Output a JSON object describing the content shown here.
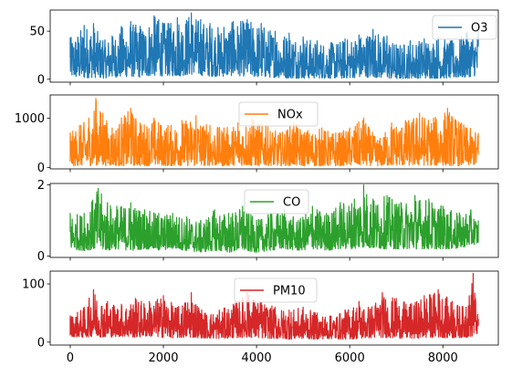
{
  "chart_data": [
    {
      "type": "line",
      "x_range": [
        0,
        8760
      ],
      "ylim": [
        -3,
        72
      ],
      "yticks": [
        0,
        50
      ],
      "legend": "top-right",
      "series": [
        {
          "name": "O3",
          "color": "#1f77b4",
          "x": [
            0,
            300,
            500,
            700,
            900,
            1100,
            1300,
            1500,
            1800,
            1900,
            2100,
            2300,
            2600,
            2800,
            3000,
            3300,
            3500,
            3800,
            4100,
            4400,
            4700,
            5000,
            5300,
            5600,
            5900,
            6200,
            6500,
            6800,
            7000,
            7300,
            7600,
            7900,
            8200,
            8500,
            8760
          ],
          "max": [
            43,
            56,
            58,
            40,
            45,
            55,
            60,
            55,
            66,
            62,
            58,
            64,
            69,
            62,
            58,
            54,
            60,
            62,
            58,
            50,
            48,
            44,
            40,
            38,
            42,
            46,
            52,
            45,
            36,
            40,
            42,
            44,
            40,
            48,
            50
          ],
          "min": [
            2,
            1,
            2,
            1,
            2,
            2,
            3,
            2,
            4,
            3,
            4,
            3,
            5,
            4,
            3,
            3,
            4,
            3,
            2,
            2,
            1,
            1,
            1,
            1,
            1,
            2,
            2,
            1,
            0,
            1,
            1,
            1,
            1,
            2,
            4
          ]
        }
      ]
    },
    {
      "type": "line",
      "x_range": [
        0,
        8760
      ],
      "ylim": [
        -30,
        1470
      ],
      "yticks": [
        0,
        1000
      ],
      "legend": "top-center",
      "series": [
        {
          "name": "NOx",
          "color": "#ff7f0e",
          "x": [
            0,
            200,
            400,
            550,
            700,
            900,
            1100,
            1300,
            1500,
            1800,
            2100,
            2400,
            2700,
            3000,
            3300,
            3600,
            3900,
            4200,
            4500,
            4800,
            5100,
            5400,
            5700,
            6000,
            6300,
            6600,
            6900,
            7200,
            7500,
            7800,
            8100,
            8400,
            8760
          ],
          "max": [
            700,
            850,
            1000,
            1400,
            1100,
            800,
            1000,
            1200,
            900,
            1000,
            850,
            950,
            1050,
            850,
            800,
            900,
            1000,
            850,
            700,
            900,
            750,
            800,
            700,
            800,
            1000,
            550,
            900,
            950,
            1100,
            1000,
            1200,
            900,
            700
          ],
          "min": [
            20,
            40,
            30,
            50,
            30,
            40,
            30,
            40,
            30,
            40,
            30,
            40,
            30,
            40,
            30,
            40,
            30,
            40,
            30,
            40,
            30,
            30,
            30,
            40,
            40,
            30,
            40,
            40,
            40,
            40,
            40,
            30,
            60
          ]
        }
      ]
    },
    {
      "type": "line",
      "x_range": [
        0,
        8760
      ],
      "ylim": [
        -0.04,
        2.04
      ],
      "yticks": [
        0,
        2
      ],
      "legend": "top-center",
      "series": [
        {
          "name": "CO",
          "color": "#2ca02c",
          "x": [
            0,
            300,
            600,
            800,
            1000,
            1300,
            1600,
            1900,
            2200,
            2500,
            2800,
            3100,
            3400,
            3700,
            4000,
            4300,
            4600,
            4900,
            5200,
            5500,
            5800,
            6100,
            6300,
            6500,
            6800,
            7100,
            7400,
            7700,
            8000,
            8300,
            8600,
            8760
          ],
          "max": [
            1.2,
            1.2,
            1.9,
            1.5,
            1.4,
            1.5,
            1.3,
            1.2,
            1.2,
            1.1,
            1.0,
            1.3,
            1.2,
            1.4,
            1.0,
            1.2,
            1.3,
            1.0,
            1.4,
            1.2,
            1.5,
            1.6,
            2.0,
            1.6,
            1.7,
            1.5,
            1.7,
            1.6,
            1.4,
            1.2,
            1.3,
            1.0
          ],
          "min": [
            0.2,
            0.15,
            0.2,
            0.15,
            0.2,
            0.15,
            0.2,
            0.15,
            0.2,
            0.15,
            0.1,
            0.15,
            0.1,
            0.15,
            0.1,
            0.15,
            0.2,
            0.15,
            0.2,
            0.15,
            0.2,
            0.2,
            0.25,
            0.2,
            0.2,
            0.2,
            0.2,
            0.2,
            0.2,
            0.2,
            0.3,
            0.35
          ]
        }
      ]
    },
    {
      "type": "line",
      "x_range": [
        0,
        8760
      ],
      "ylim": [
        -5,
        122
      ],
      "yticks": [
        0,
        100
      ],
      "legend": "top-center",
      "series": [
        {
          "name": "PM10",
          "color": "#d62728",
          "x": [
            0,
            300,
            500,
            800,
            1100,
            1400,
            1700,
            2000,
            2300,
            2600,
            2900,
            3200,
            3500,
            3800,
            4100,
            4400,
            4700,
            5000,
            5300,
            5600,
            5900,
            6200,
            6400,
            6700,
            7000,
            7300,
            7600,
            7900,
            8200,
            8500,
            8650,
            8760
          ],
          "max": [
            45,
            60,
            90,
            70,
            65,
            75,
            70,
            80,
            60,
            85,
            50,
            55,
            65,
            85,
            70,
            60,
            55,
            60,
            50,
            45,
            55,
            70,
            60,
            85,
            75,
            65,
            80,
            90,
            70,
            60,
            118,
            40
          ],
          "min": [
            10,
            8,
            10,
            8,
            10,
            8,
            10,
            8,
            7,
            8,
            7,
            6,
            7,
            8,
            7,
            6,
            5,
            6,
            5,
            6,
            5,
            6,
            7,
            8,
            7,
            6,
            7,
            8,
            7,
            8,
            10,
            15
          ]
        }
      ]
    }
  ],
  "x_axis": {
    "ticks": [
      0,
      2000,
      4000,
      6000,
      8000
    ],
    "tick_labels": [
      "0",
      "2000",
      "4000",
      "6000",
      "8000"
    ]
  },
  "colors": {
    "axes": "#000000",
    "legend_border": "#cccccc",
    "background": "#ffffff"
  }
}
